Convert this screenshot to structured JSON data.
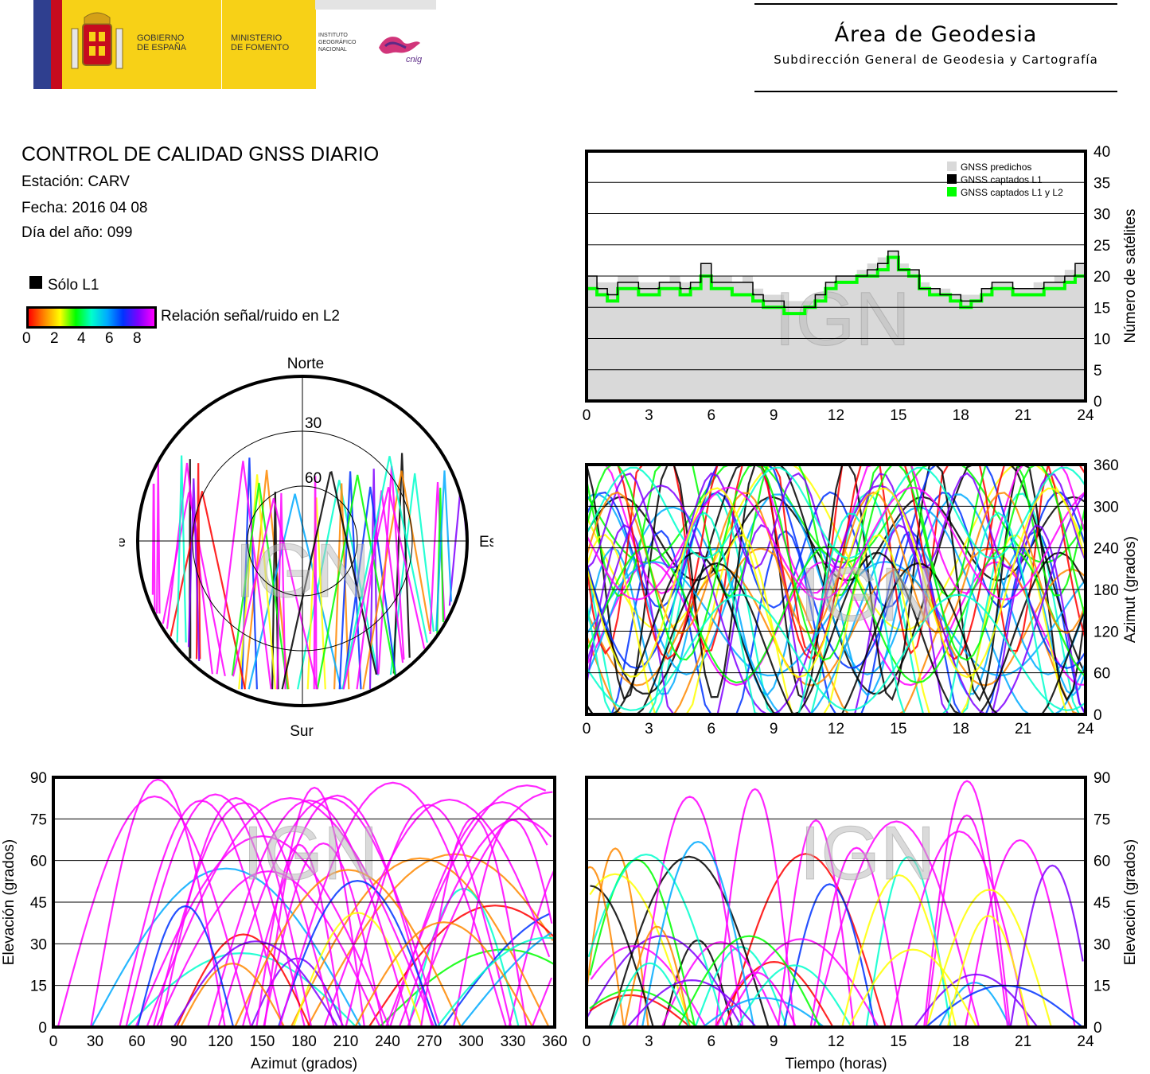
{
  "header": {
    "gov_line1": "GOBIERNO",
    "gov_line2": "DE ESPAÑA",
    "min_line1": "MINISTERIO",
    "min_line2": "DE FOMENTO",
    "inst_line1": "INSTITUTO",
    "inst_line2": "GEOGRÁFICO",
    "inst_line3": "NACIONAL",
    "cnig": "cnig",
    "area_title": "Área de Geodesia",
    "area_subtitle": "Subdirección General de Geodesia y Cartografía"
  },
  "info": {
    "title": "CONTROL DE CALIDAD GNSS DIARIO",
    "station": "Estación: CARV",
    "date": "Fecha: 2016 04 08",
    "doy": "Día del año: 099",
    "legend_l1": "Sólo L1",
    "colorbar_label": "Relación señal/ruido en L2",
    "colorbar_ticks": [
      "0",
      "2",
      "4",
      "6",
      "8"
    ]
  },
  "watermark": "IGN",
  "colors": {
    "predicted": "#d9d9d9",
    "l1": "#000000",
    "l1l2": "#00ff00",
    "snr_scale": [
      "#ff0000",
      "#ff8800",
      "#ffff00",
      "#00ff00",
      "#00ffcc",
      "#00aaff",
      "#0033ff",
      "#8000ff",
      "#ff00ff"
    ]
  },
  "chart_data": [
    {
      "type": "line",
      "name": "satellite_count",
      "xlabel": "",
      "ylabel": "Número de satélites",
      "xlim": [
        0,
        24
      ],
      "ylim": [
        0,
        40
      ],
      "xticks": [
        "0",
        "3",
        "6",
        "9",
        "12",
        "15",
        "18",
        "21",
        "24"
      ],
      "yticks": [
        "0",
        "5",
        "10",
        "15",
        "20",
        "25",
        "30",
        "35",
        "40"
      ],
      "grid": true,
      "legend": [
        "GNSS predichos",
        "GNSS captados L1",
        "GNSS captados L1 y L2"
      ],
      "legend_position": "top-right",
      "x": [
        0,
        0.5,
        1,
        1.5,
        2,
        2.5,
        3,
        3.5,
        4,
        4.5,
        5,
        5.5,
        6,
        6.5,
        7,
        7.5,
        8,
        8.5,
        9,
        9.5,
        10,
        10.5,
        11,
        11.5,
        12,
        12.5,
        13,
        13.5,
        14,
        14.5,
        15,
        15.5,
        16,
        16.5,
        17,
        17.5,
        18,
        18.5,
        19,
        19.5,
        20,
        20.5,
        21,
        21.5,
        22,
        22.5,
        23,
        23.5,
        24
      ],
      "series": [
        {
          "name": "GNSS predichos",
          "values": [
            20,
            19,
            19,
            20,
            20,
            19,
            19,
            19,
            20,
            19,
            19,
            22,
            20,
            20,
            19,
            20,
            18,
            17,
            17,
            16,
            16,
            16,
            17,
            19,
            20,
            20,
            21,
            22,
            23,
            24,
            22,
            21,
            19,
            18,
            18,
            17,
            17,
            17,
            18,
            19,
            19,
            18,
            18,
            19,
            19,
            20,
            21,
            22,
            22
          ]
        },
        {
          "name": "GNSS captados L1",
          "values": [
            20,
            18,
            17,
            19,
            19,
            18,
            18,
            19,
            19,
            18,
            19,
            22,
            19,
            19,
            19,
            19,
            17,
            16,
            16,
            15,
            15,
            15,
            17,
            19,
            20,
            20,
            20,
            21,
            22,
            24,
            21,
            21,
            18,
            18,
            17,
            17,
            16,
            16,
            18,
            19,
            19,
            18,
            18,
            18,
            19,
            19,
            20,
            22,
            21
          ]
        },
        {
          "name": "GNSS captados L1 y L2",
          "values": [
            18,
            17,
            16,
            18,
            18,
            17,
            17,
            18,
            18,
            17,
            18,
            20,
            18,
            18,
            17,
            17,
            16,
            15,
            15,
            14,
            14,
            15,
            16,
            18,
            19,
            19,
            20,
            20,
            21,
            23,
            21,
            20,
            18,
            17,
            17,
            16,
            15,
            16,
            17,
            18,
            18,
            17,
            17,
            17,
            18,
            18,
            19,
            20,
            19
          ]
        }
      ]
    },
    {
      "type": "scatter",
      "name": "skyplot",
      "title": "",
      "direction_labels": {
        "north": "Norte",
        "south": "Sur",
        "west": "Oeste",
        "east": "Este"
      },
      "elevation_rings": [
        "30",
        "60"
      ]
    },
    {
      "type": "scatter",
      "name": "azimuth_vs_time",
      "ylabel": "Azimut (grados)",
      "xlim": [
        0,
        24
      ],
      "ylim": [
        0,
        360
      ],
      "xticks": [
        "0",
        "3",
        "6",
        "9",
        "12",
        "15",
        "18",
        "21",
        "24"
      ],
      "yticks": [
        "0",
        "60",
        "120",
        "180",
        "240",
        "300",
        "360"
      ],
      "grid": true
    },
    {
      "type": "scatter",
      "name": "elevation_vs_azimuth",
      "xlabel": "Azimut (grados)",
      "ylabel": "Elevación (grados)",
      "xlim": [
        0,
        360
      ],
      "ylim": [
        0,
        90
      ],
      "xticks": [
        "0",
        "30",
        "60",
        "90",
        "120",
        "150",
        "180",
        "210",
        "240",
        "270",
        "300",
        "330",
        "360"
      ],
      "yticks": [
        "0",
        "15",
        "30",
        "45",
        "60",
        "75",
        "90"
      ],
      "grid": true
    },
    {
      "type": "scatter",
      "name": "elevation_vs_time",
      "xlabel": "Tiempo (horas)",
      "ylabel": "Elevación (grados)",
      "xlim": [
        0,
        24
      ],
      "ylim": [
        0,
        90
      ],
      "xticks": [
        "0",
        "3",
        "6",
        "9",
        "12",
        "15",
        "18",
        "21",
        "24"
      ],
      "yticks": [
        "0",
        "15",
        "30",
        "45",
        "60",
        "75",
        "90"
      ],
      "grid": true
    }
  ]
}
